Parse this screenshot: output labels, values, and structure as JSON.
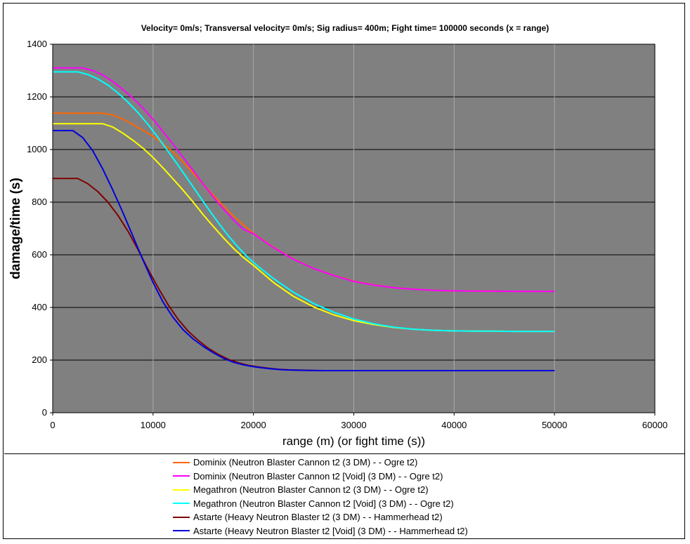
{
  "chart_data": {
    "type": "line",
    "title": "Velocity= 0m/s; Transversal velocity= 0m/s; Sig radius= 400m; Fight time= 100000 seconds (x = range)",
    "xlabel": "range (m) (or fight time (s))",
    "ylabel": "damage/time (s)",
    "xlim": [
      0,
      60000
    ],
    "ylim": [
      0,
      1400
    ],
    "xticks": [
      "0",
      "10000",
      "20000",
      "30000",
      "40000",
      "50000",
      "60000"
    ],
    "yticks": [
      "0",
      "200",
      "400",
      "600",
      "800",
      "1000",
      "1200",
      "1400"
    ],
    "grid": true,
    "legend_position": "bottom",
    "series": [
      {
        "name": "Dominix (Neutron Blaster Cannon t2 (3 DM)  -  - Ogre t2)",
        "color": "#ff6600",
        "x": [
          0,
          5000,
          6000,
          7000,
          8000,
          9000,
          10000,
          11000,
          12000,
          13000,
          14000,
          15000,
          16000,
          17000,
          18000,
          19000,
          20000,
          22000,
          24000,
          26000,
          28000,
          30000,
          32000,
          34000,
          36000,
          38000,
          40000,
          42000,
          44000,
          46000,
          48000,
          50000
        ],
        "y": [
          1138,
          1138,
          1131,
          1115,
          1095,
          1073,
          1050,
          1022,
          990,
          952,
          910,
          868,
          827,
          786,
          748,
          714,
          682,
          628,
          584,
          548,
          522,
          500,
          486,
          475,
          469,
          465,
          463,
          462,
          462,
          461,
          461,
          461
        ]
      },
      {
        "name": "Dominix (Neutron Blaster Cannon t2 [Void] (3 DM)  -  - Ogre t2)",
        "color": "#ff00ff",
        "x": [
          0,
          3000,
          4000,
          5000,
          6000,
          7000,
          8000,
          9000,
          10000,
          11000,
          12000,
          13000,
          14000,
          15000,
          16000,
          17000,
          18000,
          19000,
          20000,
          22000,
          24000,
          26000,
          28000,
          30000,
          32000,
          34000,
          36000,
          38000,
          40000,
          42000,
          44000,
          46000,
          48000,
          50000
        ],
        "y": [
          1310,
          1310,
          1300,
          1283,
          1258,
          1228,
          1195,
          1157,
          1115,
          1068,
          1020,
          970,
          920,
          868,
          820,
          775,
          733,
          697,
          680,
          627,
          583,
          548,
          521,
          499,
          485,
          475,
          469,
          465,
          463,
          462,
          462,
          461,
          461,
          461
        ]
      },
      {
        "name": "Megathron (Neutron Blaster Cannon t2 (3 DM)  -  - Ogre t2)",
        "color": "#ffff00",
        "x": [
          0,
          5000,
          6000,
          7000,
          8000,
          9000,
          10000,
          11000,
          12000,
          13000,
          14000,
          15000,
          16000,
          17000,
          18000,
          19000,
          20000,
          22000,
          24000,
          26000,
          28000,
          30000,
          32000,
          34000,
          36000,
          38000,
          40000,
          42000,
          44000,
          46000,
          48000,
          50000
        ],
        "y": [
          1098,
          1098,
          1085,
          1062,
          1035,
          1005,
          970,
          930,
          888,
          845,
          800,
          752,
          708,
          665,
          625,
          590,
          560,
          495,
          442,
          402,
          372,
          350,
          335,
          324,
          317,
          313,
          311,
          310,
          310,
          309,
          309,
          309
        ]
      },
      {
        "name": "Megathron (Neutron Blaster Cannon t2 [Void] (3 DM)  -  - Ogre t2)",
        "color": "#00ffff",
        "x": [
          0,
          2500,
          3500,
          4500,
          5500,
          6500,
          7500,
          8500,
          9500,
          10500,
          11500,
          12500,
          13500,
          14500,
          15500,
          16500,
          17500,
          18500,
          19500,
          20500,
          22000,
          24000,
          26000,
          28000,
          30000,
          32000,
          34000,
          36000,
          38000,
          40000,
          42000,
          44000,
          46000,
          48000,
          50000
        ],
        "y": [
          1295,
          1295,
          1285,
          1268,
          1245,
          1215,
          1180,
          1140,
          1095,
          1045,
          993,
          940,
          885,
          830,
          775,
          722,
          672,
          628,
          588,
          555,
          510,
          457,
          415,
          382,
          356,
          338,
          325,
          317,
          313,
          311,
          310,
          310,
          309,
          309,
          309
        ]
      },
      {
        "name": "Astarte (Heavy Neutron Blaster t2 (3 DM)  -  - Hammerhead t2)",
        "color": "#800000",
        "x": [
          0,
          2500,
          3500,
          4500,
          5500,
          6500,
          7500,
          8500,
          9500,
          10500,
          11500,
          12500,
          13500,
          14500,
          15500,
          16500,
          17500,
          18500,
          19500,
          20500,
          21500,
          22500,
          23500,
          24500,
          25500,
          27000,
          30000,
          35000,
          40000,
          45000,
          50000
        ],
        "y": [
          890,
          890,
          870,
          840,
          800,
          750,
          690,
          620,
          545,
          475,
          410,
          355,
          310,
          275,
          245,
          222,
          203,
          190,
          180,
          174,
          169,
          165,
          163,
          162,
          161,
          160,
          160,
          160,
          160,
          160,
          160
        ]
      },
      {
        "name": "Astarte (Heavy Neutron Blaster t2 [Void] (3 DM)  -  - Hammerhead t2)",
        "color": "#0000dd",
        "x": [
          0,
          2000,
          3000,
          4000,
          5000,
          6000,
          7000,
          8000,
          9000,
          10000,
          11000,
          12000,
          13000,
          14000,
          15000,
          16000,
          17000,
          18000,
          19000,
          20000,
          21000,
          22000,
          23000,
          24000,
          25000,
          27000,
          30000,
          35000,
          40000,
          45000,
          50000
        ],
        "y": [
          1072,
          1072,
          1045,
          995,
          925,
          845,
          760,
          670,
          580,
          495,
          420,
          362,
          315,
          280,
          252,
          228,
          207,
          192,
          182,
          175,
          170,
          166,
          163,
          162,
          161,
          160,
          160,
          160,
          160,
          160,
          160
        ]
      }
    ]
  }
}
